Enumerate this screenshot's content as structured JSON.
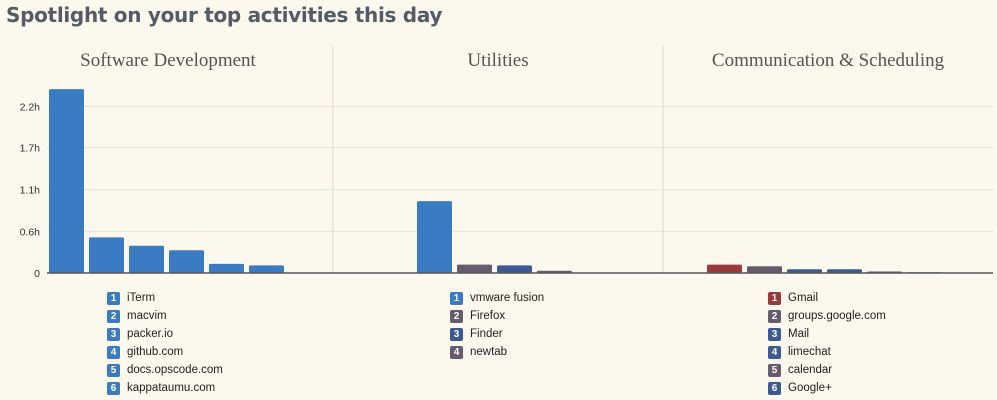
{
  "page_title": "Spotlight on your top activities this day",
  "colors": {
    "primary_blue": "#3a7bc3",
    "slate": "#665c6e",
    "dark_blue": "#3d5a94",
    "red": "#9a3a3d",
    "axis": "#555555",
    "grid": "#e6e2d6",
    "divider": "#dcd8cc"
  },
  "chart_data": [
    {
      "type": "bar",
      "title": "Software Development",
      "categories": [
        "iTerm",
        "macvim",
        "packer.io",
        "github.com",
        "docs.opscode.com",
        "kappataumu.com"
      ],
      "values": [
        2.43,
        0.47,
        0.36,
        0.3,
        0.12,
        0.1
      ],
      "badges": [
        "1",
        "2",
        "3",
        "4",
        "5",
        "6"
      ],
      "colors": [
        "#3a7bc3",
        "#3a7bc3",
        "#3a7bc3",
        "#3a7bc3",
        "#3a7bc3",
        "#3a7bc3"
      ],
      "yticks": [
        "0",
        "0.6h",
        "1.1h",
        "1.7h",
        "2.2h"
      ],
      "ytick_values": [
        0,
        0.55,
        1.1,
        1.66,
        2.2
      ],
      "ylim": [
        0,
        2.55
      ],
      "unit": "h"
    },
    {
      "type": "bar",
      "title": "Utilities",
      "categories": [
        "vmware fusion",
        "Firefox",
        "Finder",
        "newtab"
      ],
      "values": [
        0.95,
        0.11,
        0.1,
        0.03
      ],
      "badges": [
        "1",
        "2",
        "3",
        "4"
      ],
      "colors": [
        "#3a7bc3",
        "#665c6e",
        "#3d5a94",
        "#665c6e"
      ],
      "ylim": [
        0,
        2.55
      ],
      "unit": "h"
    },
    {
      "type": "bar",
      "title": "Communication & Scheduling",
      "categories": [
        "Gmail",
        "groups.google.com",
        "Mail",
        "limechat",
        "calendar",
        "Google+"
      ],
      "values": [
        0.11,
        0.09,
        0.05,
        0.05,
        0.02,
        0.01
      ],
      "badges": [
        "1",
        "2",
        "3",
        "4",
        "5",
        "6"
      ],
      "colors": [
        "#9a3a3d",
        "#665c6e",
        "#3d5a94",
        "#3d5a94",
        "#665c6e",
        "#3d5a94"
      ],
      "ylim": [
        0,
        2.55
      ],
      "unit": "h"
    }
  ]
}
